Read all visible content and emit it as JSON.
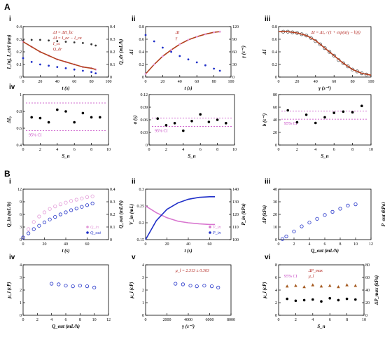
{
  "sections": [
    {
      "label": "A"
    },
    {
      "label": "B"
    }
  ],
  "chart_data": [
    {
      "id": "Ai",
      "panel": "i",
      "type": "line",
      "xlabel": "t (s)",
      "ylabel": "I_inj, I_ctrl (nm)",
      "y2label": "Q_dr (mL/h)",
      "xlim": [
        0,
        100
      ],
      "xticks": [
        0,
        20,
        40,
        60,
        80,
        100
      ],
      "ylim": [
        0,
        0.4
      ],
      "yticks": [
        0,
        0.1,
        0.2,
        0.3,
        0.4
      ],
      "y2lim": [
        0,
        0.4
      ],
      "y2ticks": [
        0,
        0.1,
        0.2,
        0.3,
        0.4
      ],
      "annotations": [
        "ΔI = ΔII_bc",
        "ΔI = I_oc − I_ca",
        "I_cc",
        "Q_dr"
      ],
      "series": [
        {
          "color": "#333333",
          "style": "points",
          "x": [
            0,
            10,
            20,
            30,
            40,
            50,
            60,
            70,
            80,
            85
          ],
          "y": [
            0.29,
            0.295,
            0.295,
            0.29,
            0.285,
            0.28,
            0.275,
            0.27,
            0.26,
            0.25
          ]
        },
        {
          "color": "#e39ad8",
          "style": "points",
          "x": [
            0,
            10,
            20,
            30,
            40,
            50,
            60,
            70,
            80,
            85
          ],
          "y": [
            0.28,
            0.24,
            0.2,
            0.17,
            0.14,
            0.12,
            0.1,
            0.08,
            0.07,
            0.06
          ]
        },
        {
          "color": "#b33f1f",
          "style": "line",
          "x": [
            0,
            10,
            20,
            30,
            40,
            50,
            60,
            70,
            80,
            85
          ],
          "y": [
            0.28,
            0.24,
            0.2,
            0.17,
            0.14,
            0.12,
            0.1,
            0.08,
            0.07,
            0.06
          ]
        },
        {
          "color": "#1f2fc8",
          "style": "points",
          "x": [
            0,
            10,
            20,
            30,
            40,
            50,
            60,
            70,
            80,
            85
          ],
          "y": [
            0.15,
            0.12,
            0.1,
            0.09,
            0.08,
            0.07,
            0.06,
            0.05,
            0.04,
            0.03
          ]
        }
      ]
    },
    {
      "id": "Aii",
      "panel": "ii",
      "type": "line",
      "xlabel": "t (s)",
      "ylabel": "ΔI",
      "y2label": "γ (s⁻¹)",
      "xlim": [
        0,
        100
      ],
      "xticks": [
        0,
        20,
        40,
        60,
        80,
        100
      ],
      "ylim": [
        0,
        0.8
      ],
      "yticks": [
        0,
        0.2,
        0.4,
        0.6,
        0.8
      ],
      "y2lim": [
        0,
        120
      ],
      "y2ticks": [
        0,
        30,
        60,
        90,
        120
      ],
      "annotations": [
        "ΔI",
        "γ"
      ],
      "series": [
        {
          "color": "#b33f1f",
          "style": "line",
          "axis": "left",
          "x": [
            0,
            10,
            20,
            30,
            40,
            50,
            60,
            70,
            80,
            87
          ],
          "y": [
            0.05,
            0.2,
            0.33,
            0.43,
            0.52,
            0.59,
            0.64,
            0.68,
            0.71,
            0.72
          ]
        },
        {
          "color": "#e39ad8",
          "style": "points",
          "axis": "left",
          "x": [
            0,
            10,
            20,
            30,
            40,
            50,
            60,
            70,
            80,
            87
          ],
          "y": [
            0.05,
            0.2,
            0.33,
            0.43,
            0.52,
            0.59,
            0.64,
            0.68,
            0.71,
            0.72
          ]
        },
        {
          "color": "#1f2fc8",
          "style": "points",
          "axis": "right",
          "x": [
            0,
            10,
            20,
            30,
            40,
            50,
            60,
            70,
            80,
            87
          ],
          "y": [
            100,
            85,
            70,
            60,
            50,
            42,
            35,
            28,
            20,
            15
          ]
        }
      ]
    },
    {
      "id": "Aiii",
      "panel": "iii",
      "type": "scatter",
      "xlabel": "γ (s⁻¹)",
      "ylabel": "ΔI",
      "xlim": [
        0,
        100
      ],
      "xticks": [
        0,
        20,
        40,
        60,
        80,
        100
      ],
      "ylim": [
        0,
        0.8
      ],
      "yticks": [
        0,
        0.2,
        0.4,
        0.6,
        0.8
      ],
      "annotations": [
        "ΔI = ΔI₀ / (1 + exp(a(γ − b)))"
      ],
      "series": [
        {
          "color": "#555555",
          "style": "circles",
          "x": [
            5,
            10,
            15,
            20,
            25,
            30,
            35,
            40,
            45,
            50,
            55,
            60,
            65,
            70,
            75,
            80,
            85,
            90,
            95
          ],
          "y": [
            0.72,
            0.72,
            0.71,
            0.7,
            0.68,
            0.66,
            0.62,
            0.57,
            0.52,
            0.46,
            0.4,
            0.34,
            0.27,
            0.22,
            0.17,
            0.12,
            0.09,
            0.06,
            0.04
          ]
        },
        {
          "color": "#b33f1f",
          "style": "line",
          "x": [
            0,
            10,
            20,
            30,
            40,
            50,
            60,
            70,
            80,
            90,
            100
          ],
          "y": [
            0.72,
            0.72,
            0.7,
            0.66,
            0.58,
            0.46,
            0.34,
            0.22,
            0.12,
            0.06,
            0.03
          ]
        }
      ]
    },
    {
      "id": "Aiv1",
      "panel": "iv",
      "type": "scatter",
      "xlabel": "S_n",
      "ylabel": "ΔI₀",
      "xlim": [
        0,
        10
      ],
      "xticks": [
        0,
        2,
        4,
        6,
        8,
        10
      ],
      "ylim": [
        0.4,
        1.0
      ],
      "yticks": [
        0.4,
        0.6,
        0.8,
        1.0
      ],
      "ci_label": "95% CI",
      "ci": [
        0.57,
        0.9
      ],
      "series": [
        {
          "color": "#000000",
          "style": "dots",
          "x": [
            1,
            2,
            3,
            4,
            5,
            6,
            7,
            8,
            9
          ],
          "y": [
            0.73,
            0.72,
            0.67,
            0.82,
            0.8,
            0.67,
            0.78,
            0.73,
            0.73
          ]
        }
      ]
    },
    {
      "id": "Aiv2",
      "panel": "",
      "type": "scatter",
      "xlabel": "S_n",
      "ylabel": "a (s)",
      "xlim": [
        0,
        10
      ],
      "xticks": [
        0,
        2,
        4,
        6,
        8,
        10
      ],
      "ylim": [
        0,
        0.12
      ],
      "yticks": [
        0,
        0.03,
        0.06,
        0.09,
        0.12
      ],
      "ci_label": "95% CI",
      "ci": [
        0.044,
        0.064
      ],
      "series": [
        {
          "color": "#000000",
          "style": "dots",
          "x": [
            1,
            2,
            3,
            4,
            5,
            6,
            7,
            8,
            9
          ],
          "y": [
            0.063,
            0.047,
            0.052,
            0.034,
            0.057,
            0.073,
            0.055,
            0.06,
            0.052
          ]
        }
      ]
    },
    {
      "id": "Aiv3",
      "panel": "",
      "type": "scatter",
      "xlabel": "S_n",
      "ylabel": "b (s⁻¹)",
      "xlim": [
        0,
        10
      ],
      "xticks": [
        0,
        2,
        4,
        6,
        8,
        10
      ],
      "ylim": [
        0,
        80
      ],
      "yticks": [
        0,
        20,
        40,
        60,
        80
      ],
      "ci_label": "95% CI",
      "ci": [
        41,
        54
      ],
      "series": [
        {
          "color": "#000000",
          "style": "dots",
          "x": [
            1,
            2,
            3,
            4,
            5,
            6,
            7,
            8,
            9
          ],
          "y": [
            55,
            36,
            48,
            35,
            44,
            51,
            53,
            52,
            62
          ]
        }
      ]
    },
    {
      "id": "Bi",
      "panel": "i",
      "type": "scatter",
      "xlabel": "t (s)",
      "ylabel": "Q_in (mL/h)",
      "y2label": "Q_out (mL/h)",
      "xlim": [
        0,
        80
      ],
      "xticks": [
        0,
        20,
        40,
        60
      ],
      "ylim": [
        0,
        12
      ],
      "yticks": [
        0,
        3,
        6,
        9,
        12
      ],
      "y2lim": [
        0,
        0.4
      ],
      "y2ticks": [
        0,
        0.1,
        0.2,
        0.3,
        0.4
      ],
      "series": [
        {
          "name": "Q_in",
          "color": "#e39ad8",
          "style": "circles",
          "x": [
            0,
            5,
            10,
            15,
            20,
            25,
            30,
            35,
            40,
            45,
            50,
            55,
            60,
            65
          ],
          "y": [
            0.5,
            2.5,
            4.2,
            5.5,
            6.5,
            7.3,
            7.9,
            8.4,
            8.8,
            9.2,
            9.5,
            9.8,
            10.1,
            10.3
          ]
        },
        {
          "name": "Q_out",
          "color": "#1f2fc8",
          "style": "circles",
          "x": [
            0,
            5,
            10,
            15,
            20,
            25,
            30,
            35,
            40,
            45,
            50,
            55,
            60,
            65
          ],
          "y": [
            0.5,
            1.5,
            2.5,
            3.3,
            4.1,
            4.8,
            5.4,
            6.0,
            6.5,
            7.0,
            7.4,
            7.8,
            8.2,
            8.6
          ]
        }
      ]
    },
    {
      "id": "Bii",
      "panel": "ii",
      "type": "line",
      "xlabel": "t (s)",
      "ylabel": "V_in (mL)",
      "y2label": "P_in (kPa)",
      "xlim": [
        0,
        80
      ],
      "xticks": [
        0,
        20,
        40,
        60
      ],
      "ylim": [
        0.15,
        0.3
      ],
      "yticks": [
        0.15,
        0.2,
        0.25,
        0.3
      ],
      "y2lim": [
        100,
        140
      ],
      "y2ticks": [
        100,
        110,
        120,
        130,
        140
      ],
      "series": [
        {
          "name": "V_in",
          "color": "#d875cf",
          "style": "line",
          "axis": "left",
          "x": [
            0,
            10,
            20,
            30,
            40,
            50,
            60,
            65
          ],
          "y": [
            0.25,
            0.23,
            0.215,
            0.205,
            0.2,
            0.197,
            0.195,
            0.195
          ]
        },
        {
          "name": "P_in",
          "color": "#1f2fc8",
          "style": "line",
          "axis": "right",
          "x": [
            0,
            10,
            20,
            30,
            40,
            50,
            60,
            65
          ],
          "y": [
            100,
            115,
            124,
            129,
            132,
            133.5,
            134,
            134
          ]
        }
      ]
    },
    {
      "id": "Biii",
      "panel": "iii",
      "type": "scatter",
      "xlabel": "Q_out (mL/h)",
      "ylabel": "ΔP (kPa)",
      "y2label": "P_out (kPa)",
      "xlim": [
        0,
        12
      ],
      "xticks": [
        0,
        2,
        4,
        6,
        8,
        10,
        12
      ],
      "ylim": [
        0,
        40
      ],
      "yticks": [
        0,
        10,
        20,
        30,
        40
      ],
      "series": [
        {
          "color": "#1f2fc8",
          "style": "circles",
          "x": [
            0.5,
            1,
            2,
            3,
            4,
            5,
            6,
            7,
            8,
            9,
            10
          ],
          "y": [
            0.5,
            2.5,
            6.5,
            10.5,
            13.5,
            16.5,
            19.5,
            22,
            24.5,
            27,
            28
          ]
        }
      ]
    },
    {
      "id": "Biv",
      "panel": "iv",
      "type": "scatter",
      "xlabel": "Q_out (mL/h)",
      "ylabel": "μ_l (cP)",
      "xlim": [
        0,
        12
      ],
      "xticks": [
        0,
        2,
        4,
        6,
        8,
        10,
        12
      ],
      "ylim": [
        0,
        4
      ],
      "yticks": [
        0,
        1,
        2,
        3,
        4
      ],
      "series": [
        {
          "color": "#1f2fc8",
          "style": "circles",
          "x": [
            4,
            5,
            6,
            7,
            8,
            9,
            10
          ],
          "y": [
            2.5,
            2.45,
            2.35,
            2.3,
            2.35,
            2.3,
            2.2
          ]
        }
      ]
    },
    {
      "id": "Bv",
      "panel": "v",
      "type": "scatter",
      "xlabel": "γ (s⁻¹)",
      "ylabel": "μ_l (cP)",
      "xlim": [
        0,
        8000
      ],
      "xticks": [
        0,
        2000,
        4000,
        6000,
        8000
      ],
      "ylim": [
        0,
        4
      ],
      "yticks": [
        0,
        1,
        2,
        3,
        4
      ],
      "annotations": [
        "μ_l = 2.313 ± 0.303"
      ],
      "series": [
        {
          "color": "#1f2fc8",
          "style": "circles",
          "x": [
            2800,
            3500,
            4200,
            4800,
            5500,
            6200,
            6800
          ],
          "y": [
            2.5,
            2.45,
            2.35,
            2.3,
            2.35,
            2.3,
            2.2
          ]
        }
      ]
    },
    {
      "id": "Bvi",
      "panel": "vi",
      "type": "scatter",
      "xlabel": "S_n",
      "ylabel": "μ_l (cP)",
      "y2label": "ΔP_max (kPa)",
      "xlim": [
        0,
        10
      ],
      "xticks": [
        0,
        2,
        4,
        6,
        8,
        10
      ],
      "ylim": [
        0,
        8
      ],
      "yticks": [
        0,
        2,
        4,
        6,
        8
      ],
      "y2lim": [
        0,
        80
      ],
      "y2ticks": [
        0,
        20,
        40,
        60,
        80
      ],
      "ci_label": "95% CI",
      "annotations": [
        "ΔP_max",
        "μ_l"
      ],
      "series": [
        {
          "color": "#000000",
          "style": "dots",
          "axis": "left",
          "x": [
            1,
            2,
            3,
            4,
            5,
            6,
            7,
            8,
            9
          ],
          "y": [
            2.6,
            2.3,
            2.4,
            2.5,
            2.2,
            2.7,
            2.4,
            2.6,
            2.5
          ]
        },
        {
          "color": "#a55a20",
          "style": "triangles",
          "axis": "right",
          "x": [
            1,
            2,
            3,
            4,
            5,
            6,
            7,
            8,
            9
          ],
          "y": [
            46,
            47,
            45,
            48,
            46,
            47,
            45,
            48,
            47
          ]
        }
      ]
    }
  ]
}
